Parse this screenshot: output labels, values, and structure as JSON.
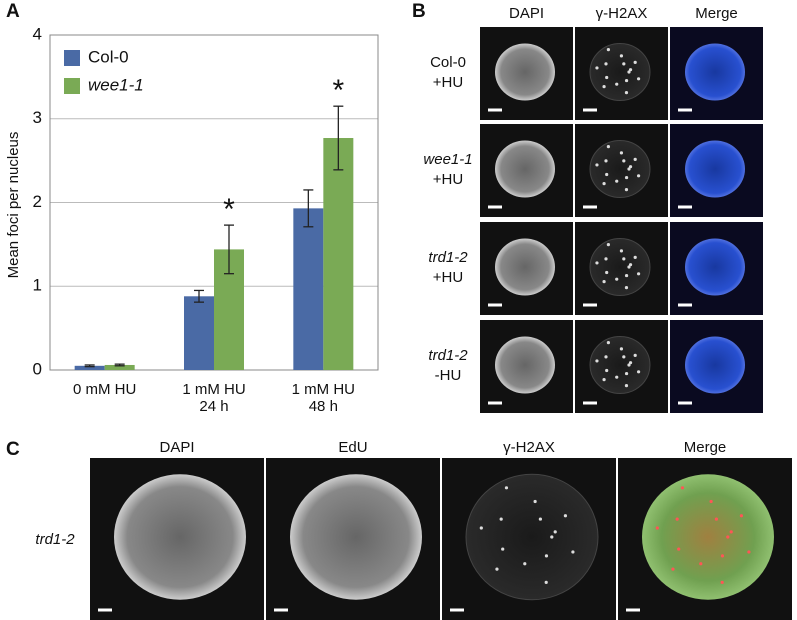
{
  "chart_data": {
    "type": "bar",
    "panel": "A",
    "ylabel": "Mean foci per nucleus",
    "categories": [
      "0 mM HU",
      "1 mM HU\n24 h",
      "1 mM HU\n48 h"
    ],
    "series": [
      {
        "name": "Col-0",
        "color": "#4a6aa5",
        "values": [
          0.05,
          0.88,
          1.93
        ],
        "errors": [
          0.01,
          0.07,
          0.22
        ]
      },
      {
        "name": "wee1-1",
        "color": "#7aaa55",
        "values": [
          0.06,
          1.44,
          2.77
        ],
        "errors": [
          0.01,
          0.29,
          0.38
        ]
      }
    ],
    "significance": [
      null,
      "*",
      "*"
    ],
    "ylim": [
      0,
      4
    ],
    "yticks": [
      0,
      1,
      2,
      3,
      4
    ],
    "grid": true,
    "legend": "upper left"
  },
  "panel_b": {
    "label": "B",
    "columns": [
      "DAPI",
      "γ-H2AX",
      "Merge"
    ],
    "rows": [
      {
        "genotype": "Col-0",
        "treatment": "+HU"
      },
      {
        "genotype": "wee1-1",
        "treatment": "+HU"
      },
      {
        "genotype": "trd1-2",
        "treatment": "+HU"
      },
      {
        "genotype": "trd1-2",
        "treatment": "-HU"
      }
    ]
  },
  "panel_c": {
    "label": "C",
    "row_label": "trd1-2",
    "columns": [
      "DAPI",
      "EdU",
      "γ-H2AX",
      "Merge"
    ]
  }
}
